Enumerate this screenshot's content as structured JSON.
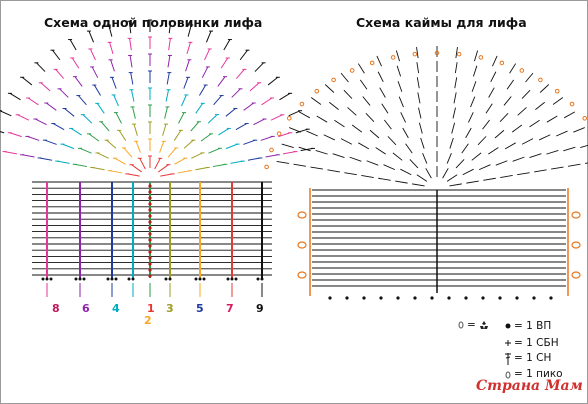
{
  "titles": {
    "left": "Схема одной половинки лифа",
    "right": "Схема каймы для лифа"
  },
  "column_numbers": [
    {
      "label": "8",
      "color": "#c2185b"
    },
    {
      "label": "6",
      "color": "#8e24aa"
    },
    {
      "label": "4",
      "color": "#00acc1"
    },
    {
      "label": "1",
      "color": "#e53935"
    },
    {
      "label": "2",
      "color": "#f9a825"
    },
    {
      "label": "3",
      "color": "#9e9d24"
    },
    {
      "label": "5",
      "color": "#1e3a9e"
    },
    {
      "label": "7",
      "color": "#d81b60"
    },
    {
      "label": "9",
      "color": "#111111"
    }
  ],
  "legend": {
    "picot_group": "=",
    "vp": "= 1 ВП",
    "sbn": "= 1 СБН",
    "sn": "= 1 СН",
    "piko": "= 1 пико"
  },
  "logo_text": "Страна Мам",
  "colors": {
    "main": "#111111",
    "border": "#e8771f"
  }
}
